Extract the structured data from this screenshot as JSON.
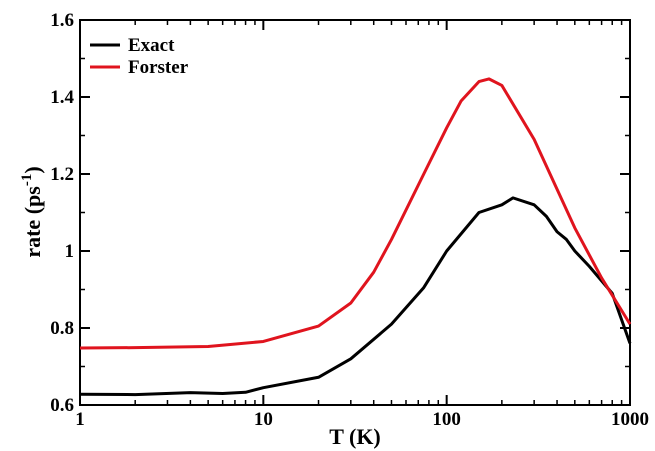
{
  "chart_data": {
    "type": "line",
    "xlabel": "T (K)",
    "ylabel": {
      "text": "rate (ps",
      "superscript": "-1",
      "close": ")"
    },
    "xscale": "log",
    "xlim": [
      1,
      1000
    ],
    "xticks": [
      1,
      10,
      100,
      1000
    ],
    "xminorticks": [
      2,
      3,
      4,
      5,
      6,
      7,
      8,
      9,
      20,
      30,
      40,
      50,
      60,
      70,
      80,
      90,
      200,
      300,
      400,
      500,
      600,
      700,
      800,
      900
    ],
    "ylim": [
      0.6,
      1.6
    ],
    "yticks": [
      0.6,
      0.8,
      1,
      1.2,
      1.4,
      1.6
    ],
    "yminorticks": [
      0.7,
      0.9,
      1.1,
      1.3,
      1.5
    ],
    "legend": "upper left",
    "series": [
      {
        "name": "Exact",
        "color": "#000000",
        "x": [
          1,
          2,
          4,
          6,
          8,
          10,
          20,
          30,
          50,
          75,
          100,
          150,
          200,
          230,
          300,
          350,
          400,
          450,
          500,
          600,
          800,
          1000
        ],
        "values": [
          0.628,
          0.627,
          0.632,
          0.63,
          0.633,
          0.645,
          0.672,
          0.72,
          0.81,
          0.905,
          1.0,
          1.1,
          1.12,
          1.138,
          1.12,
          1.09,
          1.05,
          1.03,
          1.0,
          0.96,
          0.89,
          0.76
        ]
      },
      {
        "name": "Forster",
        "color": "#e0141e",
        "x": [
          1,
          2,
          5,
          10,
          20,
          30,
          40,
          50,
          75,
          100,
          120,
          150,
          170,
          200,
          300,
          500,
          700,
          1000
        ],
        "values": [
          0.748,
          0.749,
          0.752,
          0.765,
          0.805,
          0.865,
          0.945,
          1.03,
          1.2,
          1.32,
          1.39,
          1.44,
          1.447,
          1.43,
          1.29,
          1.06,
          0.93,
          0.81
        ]
      }
    ]
  }
}
